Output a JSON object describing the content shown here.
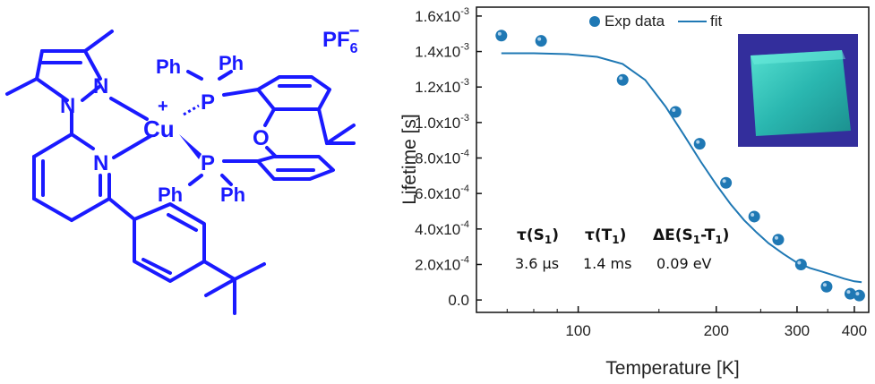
{
  "molecule": {
    "counterion": "PF",
    "counterion_sub": "6",
    "counterion_sup": "−",
    "atoms": {
      "cu": "Cu",
      "cu_charge": "+",
      "p1": "P",
      "p2": "P",
      "ph1": "Ph",
      "ph2": "Ph",
      "ph3": "Ph",
      "ph4": "Ph",
      "o": "O",
      "n_pz1": "N",
      "n_pz2": "N",
      "n_py": "N"
    }
  },
  "chart_data": {
    "type": "scatter",
    "xlabel": "Temperature [K]",
    "ylabel": "Lifetime [s]",
    "x_scale": "log",
    "x_ticks": [
      "100",
      "200",
      "300",
      "400"
    ],
    "y_ticks": [
      "0.0",
      "2.0x10",
      "4.0x10",
      "6.0x10",
      "8.0x10",
      "1.0x10",
      "1.2x10",
      "1.4x10",
      "1.6x10"
    ],
    "y_tick_exps": [
      "",
      "-4",
      "-4",
      "-4",
      "-4",
      "-3",
      "-3",
      "-3",
      "-3"
    ],
    "xlim": [
      60,
      430
    ],
    "ylim": [
      -7e-05,
      0.00165
    ],
    "legend": {
      "placement": "top",
      "entries": [
        "Exp data",
        "fit"
      ]
    },
    "series": [
      {
        "name": "Exp data",
        "style": "markers",
        "color": "#1f78b4",
        "x": [
          68,
          83,
          125,
          163,
          184,
          210,
          242,
          273,
          306,
          348,
          392,
          410
        ],
        "y": [
          0.00149,
          0.00146,
          0.00124,
          0.00106,
          0.00088,
          0.00066,
          0.00047,
          0.00034,
          0.0002,
          7.5e-05,
          3.5e-05,
          2.5e-05
        ]
      },
      {
        "name": "fit",
        "style": "line",
        "color": "#1f78b4",
        "x": [
          68,
          80,
          95,
          110,
          125,
          140,
          155,
          170,
          185,
          200,
          215,
          230,
          245,
          260,
          280,
          300,
          320,
          340,
          360,
          380,
          400,
          415
        ],
        "y": [
          0.00139,
          0.00139,
          0.001385,
          0.00137,
          0.00133,
          0.00124,
          0.00109,
          0.00093,
          0.00078,
          0.00065,
          0.00054,
          0.00045,
          0.00038,
          0.00032,
          0.00026,
          0.00021,
          0.00018,
          0.00016,
          0.00014,
          0.00012,
          0.000105,
          0.0001
        ]
      }
    ],
    "annotations": {
      "tau_s1_head": "τ(S",
      "tau_s1_sub": "1",
      "tau_s1_tail": ")",
      "tau_s1_value": "3.6 µs",
      "tau_t1_head": "τ(T",
      "tau_t1_sub": "1",
      "tau_t1_tail": ")",
      "tau_t1_value": "1.4 ms",
      "de_head": "ΔE(S",
      "de_sub1": "1",
      "de_mid": "-T",
      "de_sub2": "1",
      "de_tail": ")",
      "de_value": "0.09 eV"
    },
    "inset": "photo of green-emitting film"
  }
}
